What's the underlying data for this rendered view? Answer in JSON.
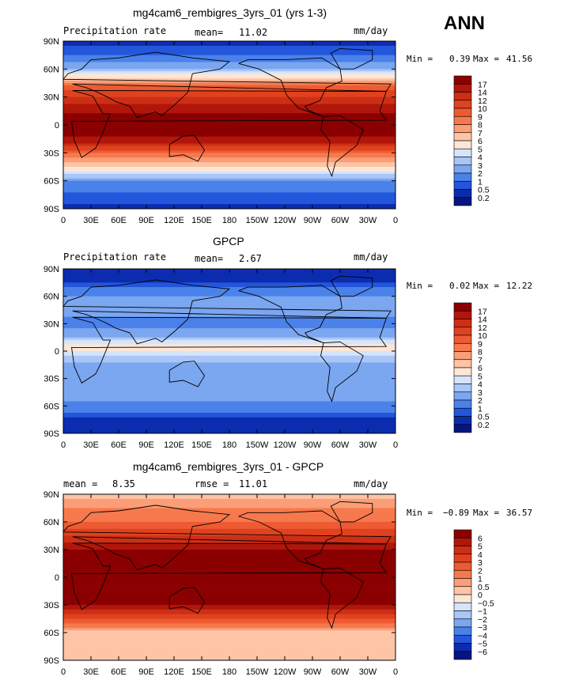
{
  "header": {
    "season": "ANN"
  },
  "chart_data": [
    {
      "type": "heatmap",
      "title": "mg4cam6_rembigres_3yrs_01 (yrs 1-3)",
      "left_label": "Precipitation rate",
      "stat_label": "mean=",
      "stat_value": "11.02",
      "units": "mm/day",
      "min_label": "Min =",
      "min_value": "0.39",
      "max_label": "Max =",
      "max_value": "41.56",
      "x_ticks": [
        "0",
        "30E",
        "60E",
        "90E",
        "120E",
        "150E",
        "180",
        "150W",
        "120W",
        "90W",
        "60W",
        "30W",
        "0"
      ],
      "y_ticks": [
        "90N",
        "60N",
        "30N",
        "0",
        "30S",
        "60S",
        "90S"
      ],
      "ylim": [
        -90,
        90
      ],
      "xlim": [
        0,
        360
      ],
      "colorbar_labels": [
        "17",
        "14",
        "12",
        "10",
        "9",
        "8",
        "7",
        "6",
        "5",
        "4",
        "3",
        "2",
        "1",
        "0.5",
        "0.2"
      ],
      "colorbar_colors": [
        "#8b0000",
        "#b2160a",
        "#cc2f16",
        "#e0421f",
        "#ee5b33",
        "#f6794d",
        "#fb9d76",
        "#fdc4a6",
        "#fde6d6",
        "#d6e4fb",
        "#a8c6f7",
        "#7ba6f0",
        "#4a82ea",
        "#2356db",
        "#0c2cb0",
        "#051680"
      ],
      "latitude_profile": [
        {
          "lat": 90,
          "value": 0.3
        },
        {
          "lat": 75,
          "value": 1
        },
        {
          "lat": 60,
          "value": 3
        },
        {
          "lat": 45,
          "value": 8
        },
        {
          "lat": 30,
          "value": 12
        },
        {
          "lat": 15,
          "value": 16
        },
        {
          "lat": 0,
          "value": 20
        },
        {
          "lat": -15,
          "value": 16
        },
        {
          "lat": -30,
          "value": 9
        },
        {
          "lat": -45,
          "value": 6
        },
        {
          "lat": -60,
          "value": 2
        },
        {
          "lat": -75,
          "value": 0.8
        },
        {
          "lat": -90,
          "value": 0.3
        }
      ]
    },
    {
      "type": "heatmap",
      "title": "GPCP",
      "left_label": "Precipitation rate",
      "stat_label": "mean=",
      "stat_value": "2.67",
      "units": "mm/day",
      "min_label": "Min =",
      "min_value": "0.02",
      "max_label": "Max =",
      "max_value": "12.22",
      "x_ticks": [
        "0",
        "30E",
        "60E",
        "90E",
        "120E",
        "150E",
        "180",
        "150W",
        "120W",
        "90W",
        "60W",
        "30W",
        "0"
      ],
      "y_ticks": [
        "90N",
        "60N",
        "30N",
        "0",
        "30S",
        "60S",
        "90S"
      ],
      "ylim": [
        -90,
        90
      ],
      "xlim": [
        0,
        360
      ],
      "colorbar_labels": [
        "17",
        "14",
        "12",
        "10",
        "9",
        "8",
        "7",
        "6",
        "5",
        "4",
        "3",
        "2",
        "1",
        "0.5",
        "0.2"
      ],
      "colorbar_colors": [
        "#8b0000",
        "#b2160a",
        "#cc2f16",
        "#e0421f",
        "#ee5b33",
        "#f6794d",
        "#fb9d76",
        "#fdc4a6",
        "#fde6d6",
        "#d6e4fb",
        "#a8c6f7",
        "#7ba6f0",
        "#4a82ea",
        "#2356db",
        "#0c2cb0",
        "#051680"
      ],
      "latitude_profile": [
        {
          "lat": 90,
          "value": 0.2
        },
        {
          "lat": 75,
          "value": 0.5
        },
        {
          "lat": 60,
          "value": 2
        },
        {
          "lat": 45,
          "value": 2.5
        },
        {
          "lat": 30,
          "value": 1.5
        },
        {
          "lat": 15,
          "value": 3
        },
        {
          "lat": 5,
          "value": 6
        },
        {
          "lat": 0,
          "value": 5
        },
        {
          "lat": -15,
          "value": 2.5
        },
        {
          "lat": -30,
          "value": 2
        },
        {
          "lat": -45,
          "value": 3
        },
        {
          "lat": -60,
          "value": 1.5
        },
        {
          "lat": -75,
          "value": 0.4
        },
        {
          "lat": -90,
          "value": 0.2
        }
      ]
    },
    {
      "type": "heatmap",
      "title": "mg4cam6_rembigres_3yrs_01 - GPCP",
      "left_label": "mean =",
      "left_value": "8.35",
      "stat_label": "rmse =",
      "stat_value": "11.01",
      "units": "mm/day",
      "min_label": "Min =",
      "min_value": "−0.89",
      "max_label": "Max =",
      "max_value": "36.57",
      "x_ticks": [
        "0",
        "30E",
        "60E",
        "90E",
        "120E",
        "150E",
        "180",
        "150W",
        "120W",
        "90W",
        "60W",
        "30W",
        "0"
      ],
      "y_ticks": [
        "90N",
        "60N",
        "30N",
        "0",
        "30S",
        "60S",
        "90S"
      ],
      "ylim": [
        -90,
        90
      ],
      "xlim": [
        0,
        360
      ],
      "colorbar_labels": [
        "6",
        "5",
        "4",
        "3",
        "2",
        "1",
        "0.5",
        "0",
        "−0.5",
        "−1",
        "−2",
        "−3",
        "−4",
        "−5",
        "−6"
      ],
      "colorbar_colors": [
        "#8b0000",
        "#b2160a",
        "#cc2f16",
        "#e0421f",
        "#ee5b33",
        "#f6794d",
        "#fb9d76",
        "#fdc4a6",
        "#fde6d6",
        "#d6e4fb",
        "#a8c6f7",
        "#7ba6f0",
        "#4a82ea",
        "#2356db",
        "#0c2cb0",
        "#051680"
      ],
      "latitude_profile": [
        {
          "lat": 90,
          "value": 0.3
        },
        {
          "lat": 75,
          "value": 1
        },
        {
          "lat": 60,
          "value": 2
        },
        {
          "lat": 45,
          "value": 4
        },
        {
          "lat": 30,
          "value": 6
        },
        {
          "lat": 15,
          "value": 8
        },
        {
          "lat": 0,
          "value": 9
        },
        {
          "lat": -15,
          "value": 8
        },
        {
          "lat": -30,
          "value": 6
        },
        {
          "lat": -45,
          "value": 3
        },
        {
          "lat": -60,
          "value": 0.2
        },
        {
          "lat": -75,
          "value": 0.5
        },
        {
          "lat": -90,
          "value": 0.3
        }
      ]
    }
  ]
}
